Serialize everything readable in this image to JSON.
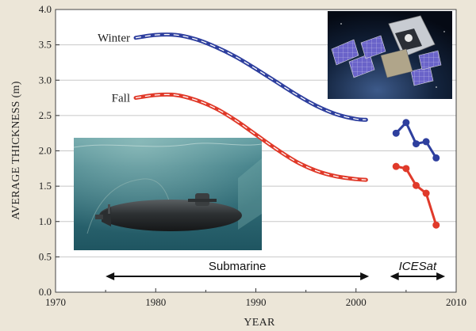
{
  "chart_data": {
    "type": "line",
    "xlabel": "YEAR",
    "ylabel": "AVERAGE THICKNESS (m)",
    "xlim": [
      1970,
      2010
    ],
    "ylim": [
      0.0,
      4.0
    ],
    "x_ticks": [
      "1970",
      "1980",
      "1990",
      "2000",
      "2010"
    ],
    "y_ticks": [
      "0.0",
      "0.5",
      "1.0",
      "1.5",
      "2.0",
      "2.5",
      "3.0",
      "3.5",
      "4.0"
    ],
    "grid": "horizontal",
    "series": [
      {
        "name": "Winter",
        "color": "#2e3f9e",
        "style": "dashed-curve",
        "x": [
          1978,
          1980,
          1982,
          1984,
          1986,
          1988,
          1990,
          1992,
          1994,
          1996,
          1998,
          2000,
          2001
        ],
        "y": [
          3.6,
          3.64,
          3.64,
          3.58,
          3.47,
          3.33,
          3.16,
          2.98,
          2.8,
          2.64,
          2.52,
          2.45,
          2.44
        ]
      },
      {
        "name": "Fall",
        "color": "#e03a2a",
        "style": "dashed-curve",
        "x": [
          1978,
          1980,
          1982,
          1984,
          1986,
          1988,
          1990,
          1992,
          1994,
          1996,
          1998,
          2000,
          2001
        ],
        "y": [
          2.75,
          2.79,
          2.79,
          2.72,
          2.6,
          2.43,
          2.23,
          2.03,
          1.85,
          1.72,
          1.64,
          1.6,
          1.59
        ]
      },
      {
        "name": "",
        "color": "#2e3f9e",
        "style": "markers",
        "x": [
          2004,
          2005,
          2006,
          2007,
          2008
        ],
        "y": [
          2.25,
          2.4,
          2.1,
          2.13,
          1.9
        ]
      },
      {
        "name": "",
        "color": "#e03a2a",
        "style": "markers",
        "x": [
          2004,
          2005,
          2006,
          2007,
          2008
        ],
        "y": [
          1.78,
          1.75,
          1.51,
          1.4,
          0.95
        ]
      }
    ],
    "series_labels": [
      "Winter",
      "Fall"
    ],
    "ranges": [
      {
        "label": "Submarine",
        "italic": false,
        "from": 1975,
        "to": 2001.3
      },
      {
        "label": "ICESat",
        "italic": true,
        "from": 2003.4,
        "to": 2008.9
      }
    ],
    "images": [
      "submarine-photo",
      "satellite-photo"
    ],
    "colors": {
      "background": "#ece6d8",
      "plot_background": "#ffffff"
    }
  }
}
